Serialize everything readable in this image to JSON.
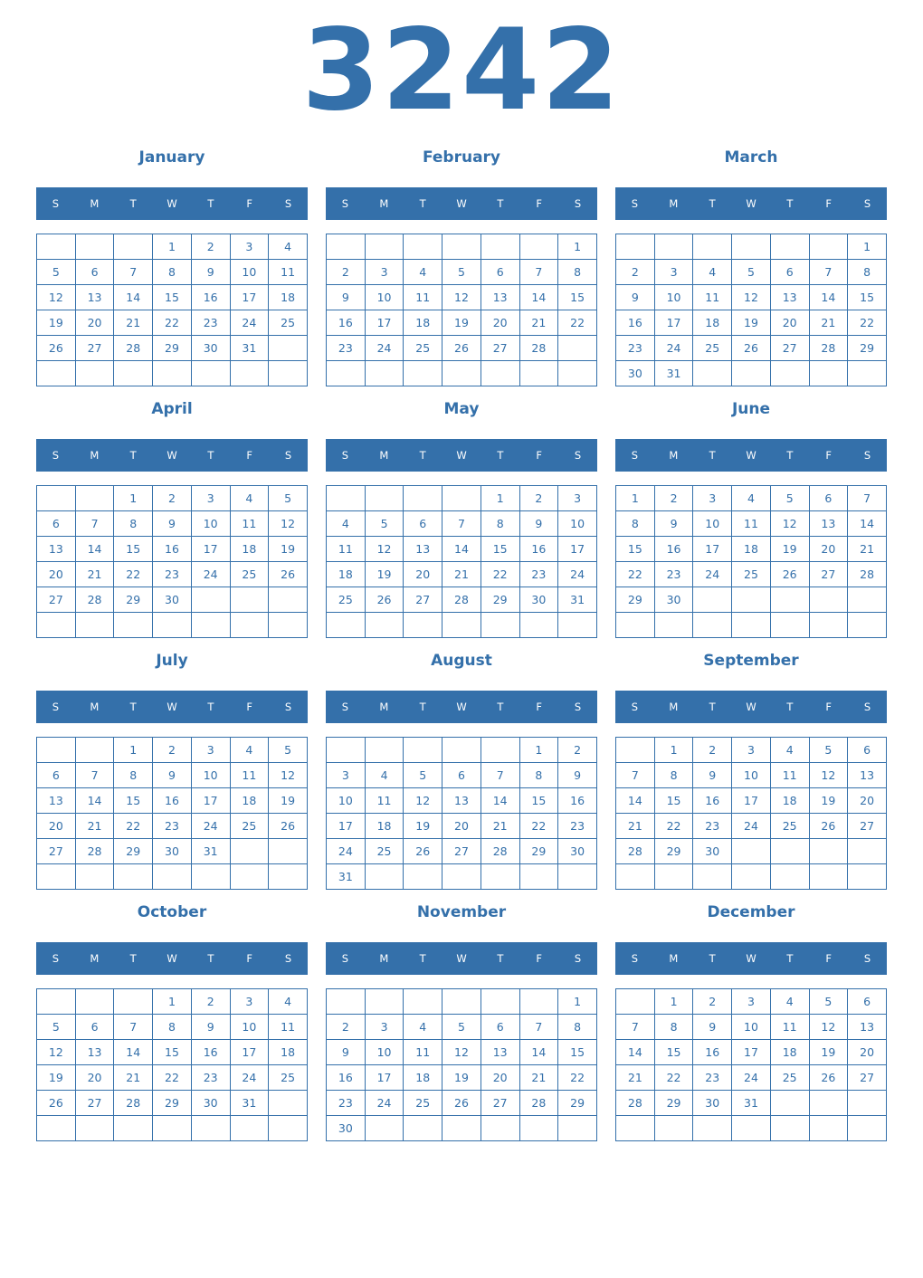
{
  "year": "3242",
  "weekdays": [
    "S",
    "M",
    "T",
    "W",
    "T",
    "F",
    "S"
  ],
  "colors": {
    "accent": "#3470aa"
  },
  "months": [
    {
      "name": "January",
      "weeks": [
        [
          null,
          null,
          null,
          1,
          2,
          3,
          4
        ],
        [
          5,
          6,
          7,
          8,
          9,
          10,
          11
        ],
        [
          12,
          13,
          14,
          15,
          16,
          17,
          18
        ],
        [
          19,
          20,
          21,
          22,
          23,
          24,
          25
        ],
        [
          26,
          27,
          28,
          29,
          30,
          31,
          null
        ],
        [
          null,
          null,
          null,
          null,
          null,
          null,
          null
        ]
      ]
    },
    {
      "name": "February",
      "weeks": [
        [
          null,
          null,
          null,
          null,
          null,
          null,
          1
        ],
        [
          2,
          3,
          4,
          5,
          6,
          7,
          8
        ],
        [
          9,
          10,
          11,
          12,
          13,
          14,
          15
        ],
        [
          16,
          17,
          18,
          19,
          20,
          21,
          22
        ],
        [
          23,
          24,
          25,
          26,
          27,
          28,
          null
        ],
        [
          null,
          null,
          null,
          null,
          null,
          null,
          null
        ]
      ]
    },
    {
      "name": "March",
      "weeks": [
        [
          null,
          null,
          null,
          null,
          null,
          null,
          1
        ],
        [
          2,
          3,
          4,
          5,
          6,
          7,
          8
        ],
        [
          9,
          10,
          11,
          12,
          13,
          14,
          15
        ],
        [
          16,
          17,
          18,
          19,
          20,
          21,
          22
        ],
        [
          23,
          24,
          25,
          26,
          27,
          28,
          29
        ],
        [
          30,
          31,
          null,
          null,
          null,
          null,
          null
        ]
      ]
    },
    {
      "name": "April",
      "weeks": [
        [
          null,
          null,
          1,
          2,
          3,
          4,
          5
        ],
        [
          6,
          7,
          8,
          9,
          10,
          11,
          12
        ],
        [
          13,
          14,
          15,
          16,
          17,
          18,
          19
        ],
        [
          20,
          21,
          22,
          23,
          24,
          25,
          26
        ],
        [
          27,
          28,
          29,
          30,
          null,
          null,
          null
        ],
        [
          null,
          null,
          null,
          null,
          null,
          null,
          null
        ]
      ]
    },
    {
      "name": "May",
      "weeks": [
        [
          null,
          null,
          null,
          null,
          1,
          2,
          3
        ],
        [
          4,
          5,
          6,
          7,
          8,
          9,
          10
        ],
        [
          11,
          12,
          13,
          14,
          15,
          16,
          17
        ],
        [
          18,
          19,
          20,
          21,
          22,
          23,
          24
        ],
        [
          25,
          26,
          27,
          28,
          29,
          30,
          31
        ],
        [
          null,
          null,
          null,
          null,
          null,
          null,
          null
        ]
      ]
    },
    {
      "name": "June",
      "weeks": [
        [
          1,
          2,
          3,
          4,
          5,
          6,
          7
        ],
        [
          8,
          9,
          10,
          11,
          12,
          13,
          14
        ],
        [
          15,
          16,
          17,
          18,
          19,
          20,
          21
        ],
        [
          22,
          23,
          24,
          25,
          26,
          27,
          28
        ],
        [
          29,
          30,
          null,
          null,
          null,
          null,
          null
        ],
        [
          null,
          null,
          null,
          null,
          null,
          null,
          null
        ]
      ]
    },
    {
      "name": "July",
      "weeks": [
        [
          null,
          null,
          1,
          2,
          3,
          4,
          5
        ],
        [
          6,
          7,
          8,
          9,
          10,
          11,
          12
        ],
        [
          13,
          14,
          15,
          16,
          17,
          18,
          19
        ],
        [
          20,
          21,
          22,
          23,
          24,
          25,
          26
        ],
        [
          27,
          28,
          29,
          30,
          31,
          null,
          null
        ],
        [
          null,
          null,
          null,
          null,
          null,
          null,
          null
        ]
      ]
    },
    {
      "name": "August",
      "weeks": [
        [
          null,
          null,
          null,
          null,
          null,
          1,
          2
        ],
        [
          3,
          4,
          5,
          6,
          7,
          8,
          9
        ],
        [
          10,
          11,
          12,
          13,
          14,
          15,
          16
        ],
        [
          17,
          18,
          19,
          20,
          21,
          22,
          23
        ],
        [
          24,
          25,
          26,
          27,
          28,
          29,
          30
        ],
        [
          31,
          null,
          null,
          null,
          null,
          null,
          null
        ]
      ]
    },
    {
      "name": "September",
      "weeks": [
        [
          null,
          1,
          2,
          3,
          4,
          5,
          6
        ],
        [
          7,
          8,
          9,
          10,
          11,
          12,
          13
        ],
        [
          14,
          15,
          16,
          17,
          18,
          19,
          20
        ],
        [
          21,
          22,
          23,
          24,
          25,
          26,
          27
        ],
        [
          28,
          29,
          30,
          null,
          null,
          null,
          null
        ],
        [
          null,
          null,
          null,
          null,
          null,
          null,
          null
        ]
      ]
    },
    {
      "name": "October",
      "weeks": [
        [
          null,
          null,
          null,
          1,
          2,
          3,
          4
        ],
        [
          5,
          6,
          7,
          8,
          9,
          10,
          11
        ],
        [
          12,
          13,
          14,
          15,
          16,
          17,
          18
        ],
        [
          19,
          20,
          21,
          22,
          23,
          24,
          25
        ],
        [
          26,
          27,
          28,
          29,
          30,
          31,
          null
        ],
        [
          null,
          null,
          null,
          null,
          null,
          null,
          null
        ]
      ]
    },
    {
      "name": "November",
      "weeks": [
        [
          null,
          null,
          null,
          null,
          null,
          null,
          1
        ],
        [
          2,
          3,
          4,
          5,
          6,
          7,
          8
        ],
        [
          9,
          10,
          11,
          12,
          13,
          14,
          15
        ],
        [
          16,
          17,
          18,
          19,
          20,
          21,
          22
        ],
        [
          23,
          24,
          25,
          26,
          27,
          28,
          29
        ],
        [
          30,
          null,
          null,
          null,
          null,
          null,
          null
        ]
      ]
    },
    {
      "name": "December",
      "weeks": [
        [
          null,
          1,
          2,
          3,
          4,
          5,
          6
        ],
        [
          7,
          8,
          9,
          10,
          11,
          12,
          13
        ],
        [
          14,
          15,
          16,
          17,
          18,
          19,
          20
        ],
        [
          21,
          22,
          23,
          24,
          25,
          26,
          27
        ],
        [
          28,
          29,
          30,
          31,
          null,
          null,
          null
        ],
        [
          null,
          null,
          null,
          null,
          null,
          null,
          null
        ]
      ]
    }
  ]
}
